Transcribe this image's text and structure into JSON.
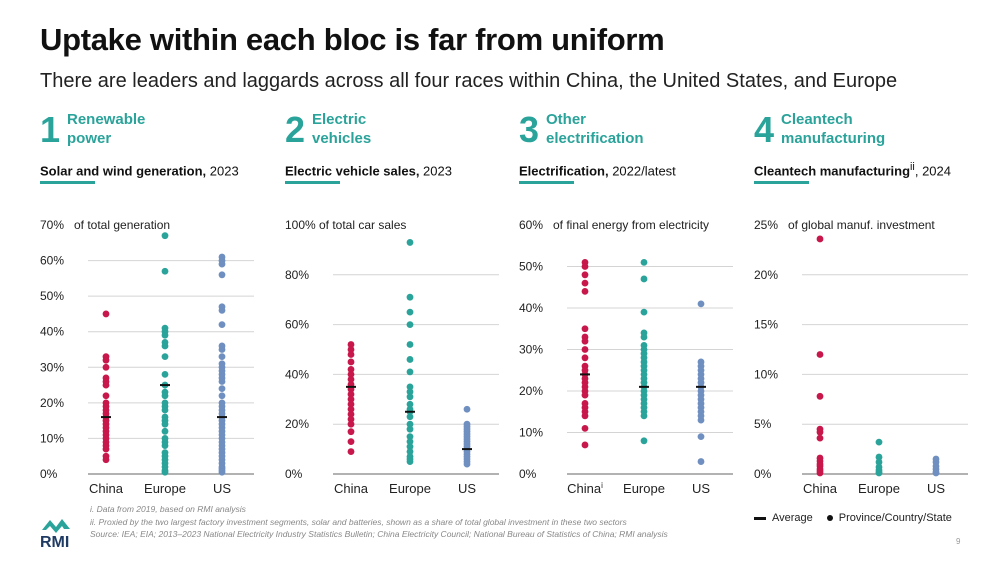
{
  "header": {
    "title": "Uptake within each bloc is far from uniform",
    "subtitle": "There are leaders and laggards across all four races within China, the United States, and Europe"
  },
  "colors": {
    "China": "#c8174a",
    "Europe": "#2aa39a",
    "US": "#6e8fc0",
    "accent": "#2aa39a"
  },
  "panels": [
    {
      "number": "1",
      "title_line1": "Renewable",
      "title_line2": "power",
      "metric_bold": "Solar and wind generation,",
      "metric_sup": "",
      "metric_rest": " 2023",
      "unit_label": "of total generation"
    },
    {
      "number": "2",
      "title_line1": "Electric",
      "title_line2": "vehicles",
      "metric_bold": "Electric vehicle sales,",
      "metric_sup": "",
      "metric_rest": " 2023",
      "unit_label": "of total car sales"
    },
    {
      "number": "3",
      "title_line1": "Other",
      "title_line2": "electrification",
      "metric_bold": "Electrification,",
      "metric_sup": "",
      "metric_rest": " 2022/latest",
      "unit_label": "of final energy from electricity"
    },
    {
      "number": "4",
      "title_line1": "Cleantech",
      "title_line2": "manufacturing",
      "metric_bold": "Cleantech manufacturing",
      "metric_sup": "ii",
      "metric_rest": ", 2024",
      "unit_label": "of global manuf. investment"
    }
  ],
  "chart_data": [
    {
      "type": "scatter",
      "title": "Solar and wind generation, 2023",
      "ylabel": "of total generation",
      "ylim": [
        0,
        70
      ],
      "yticks": [
        0,
        10,
        20,
        30,
        40,
        50,
        60,
        70
      ],
      "tick_labels": [
        "0%",
        "10%",
        "20%",
        "30%",
        "40%",
        "50%",
        "60%",
        "70%"
      ],
      "categories": [
        "China",
        "Europe",
        "US"
      ],
      "category_labels": [
        "China",
        "Europe",
        "US"
      ],
      "category_sups": [
        "",
        "",
        ""
      ],
      "series": [
        {
          "name": "China",
          "average": 16,
          "values": [
            45,
            33,
            32,
            30,
            27,
            26,
            25,
            22,
            20,
            19,
            18,
            17,
            16,
            15,
            14,
            13,
            12,
            11,
            10,
            9,
            8,
            7,
            5,
            4
          ]
        },
        {
          "name": "Europe",
          "average": 25,
          "values": [
            67,
            57,
            41,
            40,
            39,
            37,
            36,
            33,
            28,
            25,
            23,
            22,
            20,
            19,
            18,
            16,
            15,
            14,
            12,
            10,
            9,
            8,
            6,
            5,
            4,
            3,
            2,
            1,
            0.5
          ]
        },
        {
          "name": "US",
          "average": 16,
          "values": [
            61,
            60,
            59,
            56,
            47,
            46,
            42,
            36,
            35,
            33,
            31,
            30,
            29,
            28,
            27,
            26,
            24,
            22,
            20,
            19,
            18,
            17,
            16,
            15,
            14,
            13,
            12,
            11,
            10,
            9,
            8,
            7,
            6,
            5,
            4,
            3,
            2,
            1.5,
            1,
            0.5
          ]
        }
      ]
    },
    {
      "type": "scatter",
      "title": "Electric vehicle sales, 2023",
      "ylabel": "of total car sales",
      "ylim": [
        0,
        100
      ],
      "yticks": [
        0,
        20,
        40,
        60,
        80,
        100
      ],
      "tick_labels": [
        "0%",
        "20%",
        "40%",
        "60%",
        "80%",
        "100%"
      ],
      "categories": [
        "China",
        "Europe",
        "US"
      ],
      "category_labels": [
        "China",
        "Europe",
        "US"
      ],
      "category_sups": [
        "",
        "",
        ""
      ],
      "series": [
        {
          "name": "China",
          "average": 35,
          "values": [
            52,
            50,
            48,
            45,
            42,
            40,
            38,
            36,
            35,
            34,
            32,
            30,
            28,
            26,
            24,
            22,
            20,
            17,
            13,
            9
          ]
        },
        {
          "name": "Europe",
          "average": 25,
          "values": [
            93,
            71,
            65,
            60,
            52,
            46,
            41,
            35,
            33,
            31,
            28,
            26,
            25,
            23,
            20,
            18,
            15,
            13,
            11,
            9,
            7,
            6,
            5
          ]
        },
        {
          "name": "US",
          "average": 10,
          "values": [
            26,
            20,
            19,
            18,
            17,
            16,
            15,
            14,
            13,
            12,
            11,
            10,
            9,
            8,
            7,
            6,
            5,
            4
          ]
        }
      ]
    },
    {
      "type": "scatter",
      "title": "Electrification, 2022/latest",
      "ylabel": "of final energy from electricity",
      "ylim": [
        0,
        60
      ],
      "yticks": [
        0,
        10,
        20,
        30,
        40,
        50,
        60
      ],
      "tick_labels": [
        "0%",
        "10%",
        "20%",
        "30%",
        "40%",
        "50%",
        "60%"
      ],
      "categories": [
        "China",
        "Europe",
        "US"
      ],
      "category_labels": [
        "China",
        "Europe",
        "US"
      ],
      "category_sups": [
        "i",
        "",
        ""
      ],
      "series": [
        {
          "name": "China",
          "average": 24,
          "values": [
            51,
            50,
            48,
            46,
            44,
            35,
            33,
            32,
            30,
            28,
            26,
            25,
            24,
            23,
            22,
            21,
            20,
            19,
            17,
            16,
            15,
            14,
            11,
            7
          ]
        },
        {
          "name": "Europe",
          "average": 21,
          "values": [
            51,
            47,
            39,
            34,
            33,
            31,
            30,
            29,
            28,
            27,
            26,
            25,
            24,
            23,
            22,
            21,
            20,
            19,
            18,
            17,
            16,
            15,
            14,
            8
          ]
        },
        {
          "name": "US",
          "average": 21,
          "values": [
            41,
            27,
            26,
            25,
            24,
            23,
            22,
            21,
            20,
            19,
            18,
            17,
            16,
            15,
            14,
            13,
            9,
            3
          ]
        }
      ]
    },
    {
      "type": "scatter",
      "title": "Cleantech manufacturing, 2024",
      "ylabel": "of global manuf. investment",
      "ylim": [
        0,
        25
      ],
      "yticks": [
        0,
        5,
        10,
        15,
        20,
        25
      ],
      "tick_labels": [
        "0%",
        "5%",
        "10%",
        "15%",
        "20%",
        "25%"
      ],
      "categories": [
        "China",
        "Europe",
        "US"
      ],
      "category_labels": [
        "China",
        "Europe",
        "US"
      ],
      "category_sups": [
        "",
        "",
        ""
      ],
      "series": [
        {
          "name": "China",
          "average": null,
          "values": [
            23.6,
            12,
            7.8,
            4.5,
            4.2,
            3.6,
            1.6,
            1.3,
            1,
            0.8,
            0.5,
            0.3,
            0.1
          ]
        },
        {
          "name": "Europe",
          "average": null,
          "values": [
            3.2,
            1.7,
            1.2,
            0.7,
            0.4,
            0.2,
            0.1
          ]
        },
        {
          "name": "US",
          "average": null,
          "values": [
            1.5,
            1.2,
            0.8,
            0.5,
            0.2,
            0.1
          ]
        }
      ]
    }
  ],
  "legend": {
    "average": "Average",
    "points": "Province/Country/State"
  },
  "footnotes": [
    "i. Data from 2019, based on RMI analysis",
    "ii. Proxied by the two largest factory investment segments, solar and batteries, shown as a share of total global investment in these two sectors",
    "Source: IEA; EIA; 2013–2023 National Electricity Industry Statistics Bulletin; China Electricity Council; National Bureau of Statistics of China; RMI analysis"
  ],
  "brand": {
    "logo_text": "RMI"
  },
  "page_number": "9"
}
